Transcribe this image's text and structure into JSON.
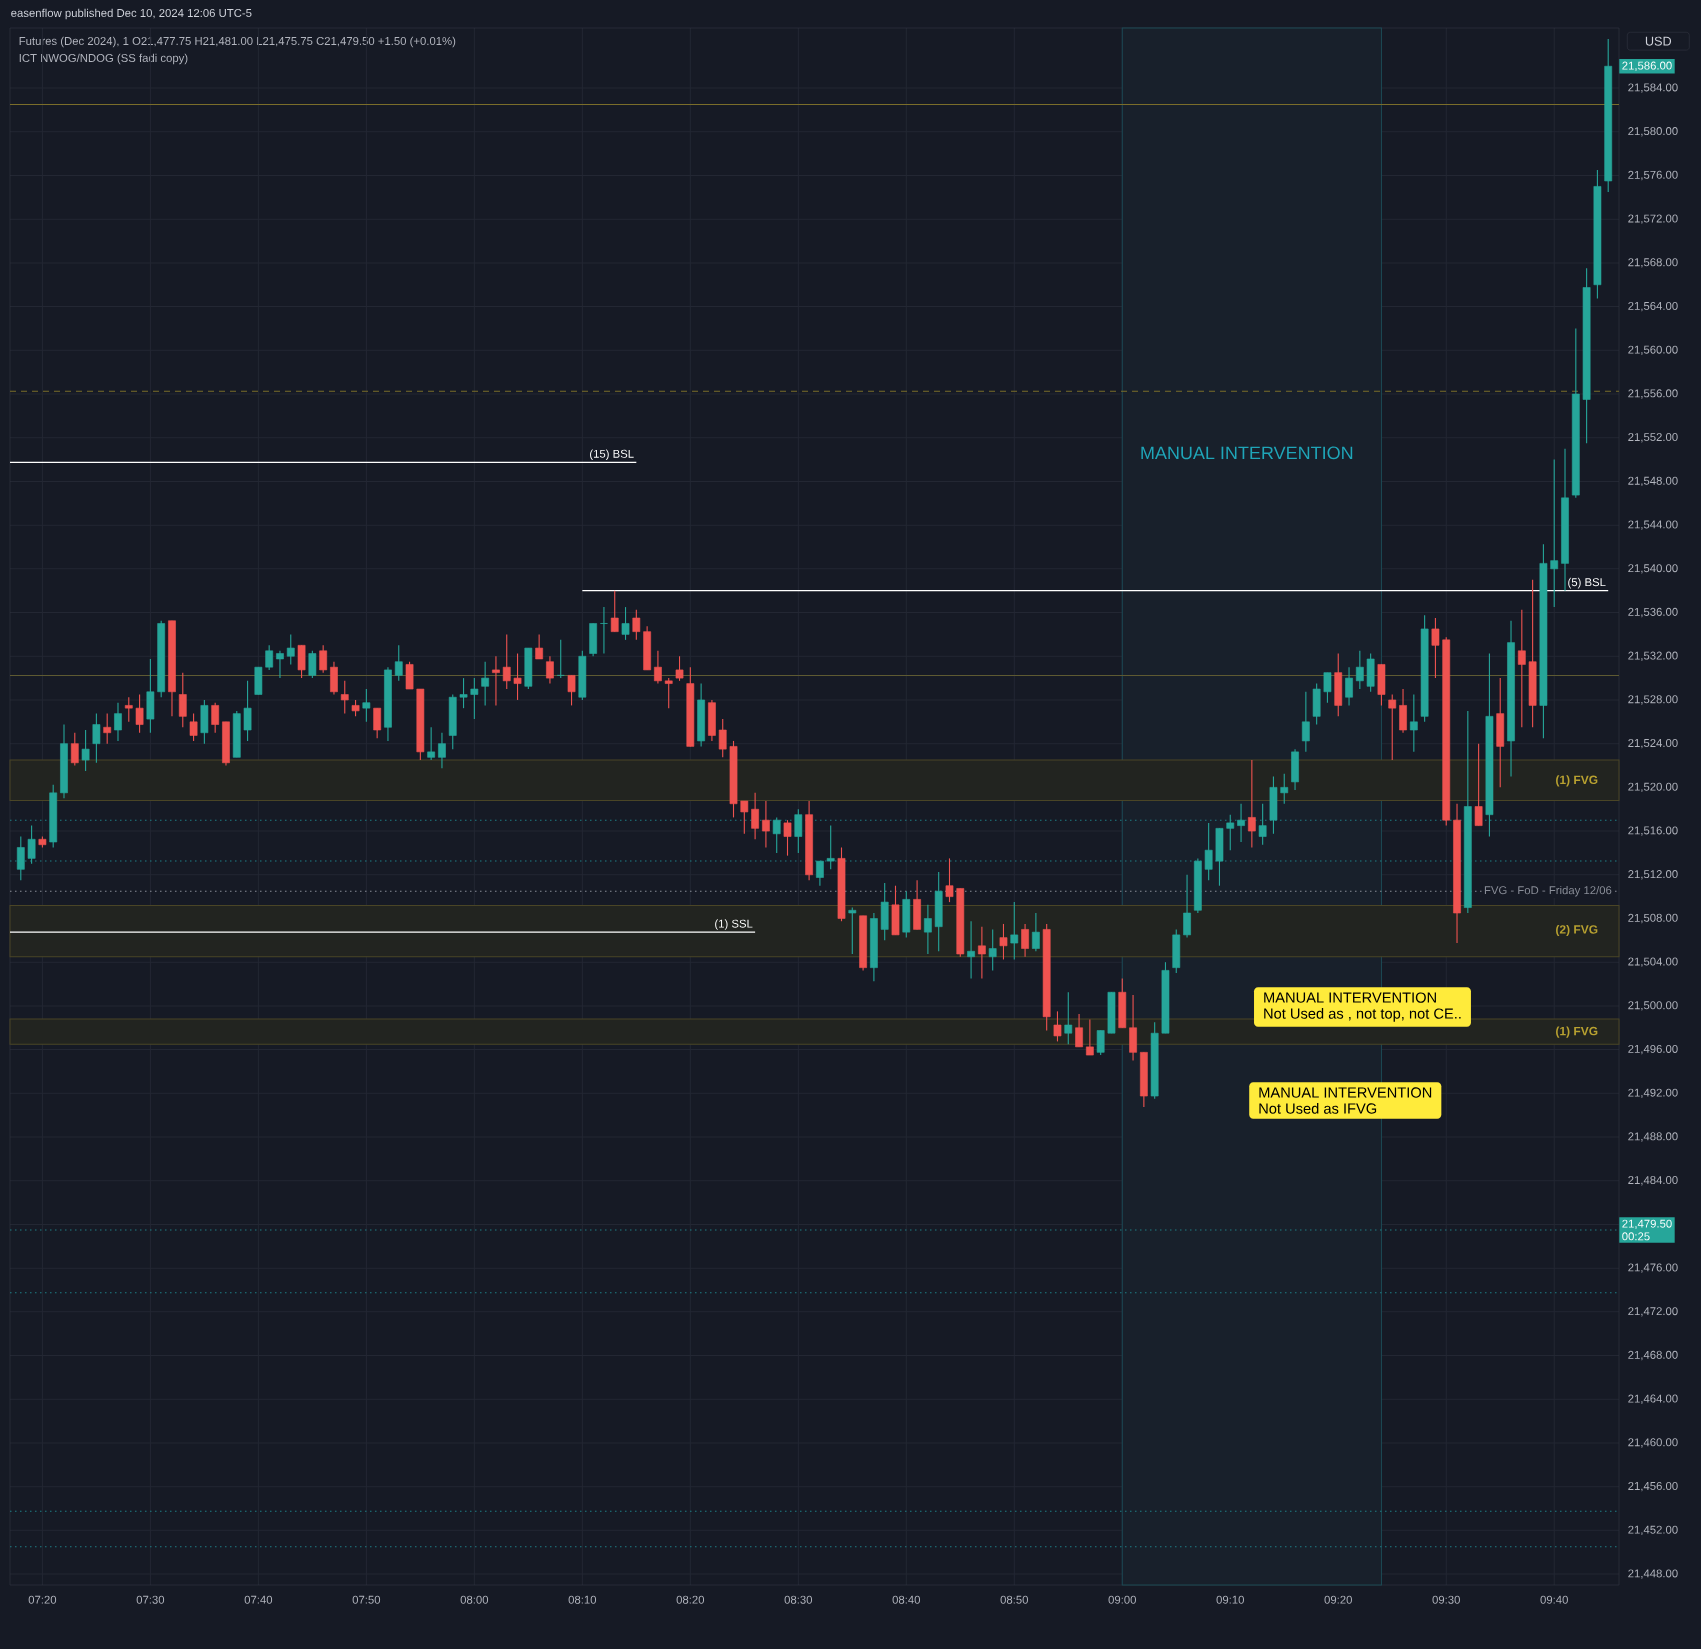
{
  "chart_data": {
    "type": "candlestick",
    "title": "easenflow published Dec 10, 2024 12:06 UTC-5",
    "subtitle": "Futures (Dec 2024), 1  O21,477.75  H21,481.00  L21,475.75  C21,479.50  +1.50 (+0.01%)",
    "xlim": [
      "2024-12-10T07:17",
      "2024-12-10T09:46"
    ],
    "ylim": [
      21447,
      21589.5
    ],
    "xticks": [
      {
        "value": "2024-12-10T07:20",
        "label": "07:20"
      },
      {
        "value": "2024-12-10T07:30",
        "label": "07:30"
      },
      {
        "value": "2024-12-10T07:40",
        "label": "07:40"
      },
      {
        "value": "2024-12-10T07:50",
        "label": "07:50"
      },
      {
        "value": "2024-12-10T08:00",
        "label": "08:00"
      },
      {
        "value": "2024-12-10T08:10",
        "label": "08:10"
      },
      {
        "value": "2024-12-10T08:20",
        "label": "08:20"
      },
      {
        "value": "2024-12-10T08:30",
        "label": "08:30"
      },
      {
        "value": "2024-12-10T08:40",
        "label": "08:40"
      },
      {
        "value": "2024-12-10T08:50",
        "label": "08:50"
      },
      {
        "value": "2024-12-10T09:00",
        "label": "09:00"
      },
      {
        "value": "2024-12-10T09:10",
        "label": "09:10"
      },
      {
        "value": "2024-12-10T09:20",
        "label": "09:20"
      },
      {
        "value": "2024-12-10T09:30",
        "label": "09:30"
      },
      {
        "value": "2024-12-10T09:40",
        "label": "09:40"
      }
    ],
    "yticks": [
      {
        "value": 21448,
        "label": "21,448.00"
      },
      {
        "value": 21452,
        "label": "21,452.00"
      },
      {
        "value": 21456,
        "label": "21,456.00"
      },
      {
        "value": 21460,
        "label": "21,460.00"
      },
      {
        "value": 21464,
        "label": "21,464.00"
      },
      {
        "value": 21468,
        "label": "21,468.00"
      },
      {
        "value": 21472,
        "label": "21,472.00"
      },
      {
        "value": 21476,
        "label": "21,476.00"
      },
      {
        "value": 21480,
        "label": null
      },
      {
        "value": 21484,
        "label": "21,484.00"
      },
      {
        "value": 21488,
        "label": "21,488.00"
      },
      {
        "value": 21492,
        "label": "21,492.00"
      },
      {
        "value": 21496,
        "label": "21,496.00"
      },
      {
        "value": 21500,
        "label": "21,500.00"
      },
      {
        "value": 21504,
        "label": "21,504.00"
      },
      {
        "value": 21508,
        "label": "21,508.00"
      },
      {
        "value": 21512,
        "label": "21,512.00"
      },
      {
        "value": 21516,
        "label": "21,516.00"
      },
      {
        "value": 21520,
        "label": "21,520.00"
      },
      {
        "value": 21524,
        "label": "21,524.00"
      },
      {
        "value": 21528,
        "label": "21,528.00"
      },
      {
        "value": 21532,
        "label": "21,532.00"
      },
      {
        "value": 21536,
        "label": "21,536.00"
      },
      {
        "value": 21540,
        "label": "21,540.00"
      },
      {
        "value": 21544,
        "label": "21,544.00"
      },
      {
        "value": 21548,
        "label": "21,548.00"
      },
      {
        "value": 21552,
        "label": "21,552.00"
      },
      {
        "value": 21556,
        "label": "21,556.00"
      },
      {
        "value": 21560,
        "label": "21,560.00"
      },
      {
        "value": 21564,
        "label": "21,564.00"
      },
      {
        "value": 21568,
        "label": "21,568.00"
      },
      {
        "value": 21572,
        "label": "21,572.00"
      },
      {
        "value": 21576,
        "label": "21,576.00"
      },
      {
        "value": 21580,
        "label": "21,580.00"
      },
      {
        "value": 21584,
        "label": "21,584.00"
      }
    ],
    "grid": true,
    "series": [
      {
        "type": "line",
        "name": "(15) BSL",
        "color": "#ffffff",
        "x": [
          "2024-12-10T07:17",
          "2024-12-10T08:15"
        ],
        "values": [
          21549.75,
          21549.75
        ]
      },
      {
        "type": "line",
        "name": "(5) BSL",
        "color": "#ffffff",
        "x": [
          "2024-12-10T08:10",
          "2024-12-10T09:45"
        ],
        "values": [
          21538,
          21538
        ]
      },
      {
        "type": "line",
        "name": "(1) SSL",
        "color": "#ffffff",
        "x": [
          "2024-12-10T07:17",
          "2024-12-10T08:26"
        ],
        "values": [
          21506.75,
          21506.75
        ]
      },
      {
        "color": "#26a69a",
        "x": [
          "2024-12-10T07:18",
          "2024-12-10T07:19",
          "2024-12-10T07:21",
          "2024-12-10T07:22",
          "2024-12-10T07:24",
          "2024-12-10T07:25",
          "2024-12-10T07:27",
          "2024-12-10T07:30",
          "2024-12-10T07:31",
          "2024-12-10T07:35",
          "2024-12-10T07:38",
          "2024-12-10T07:39",
          "2024-12-10T07:40",
          "2024-12-10T07:41",
          "2024-12-10T07:42",
          "2024-12-10T07:43",
          "2024-12-10T07:45",
          "2024-12-10T07:50",
          "2024-12-10T07:52",
          "2024-12-10T07:53",
          "2024-12-10T07:56",
          "2024-12-10T07:57",
          "2024-12-10T07:58",
          "2024-12-10T07:59",
          "2024-12-10T08:00",
          "2024-12-10T08:01",
          "2024-12-10T08:05",
          "2024-12-10T08:08",
          "2024-12-10T08:10",
          "2024-12-10T08:11",
          "2024-12-10T08:12",
          "2024-12-10T08:14",
          "2024-12-10T08:21",
          "2024-12-10T08:28",
          "2024-12-10T08:30",
          "2024-12-10T08:32",
          "2024-12-10T08:33",
          "2024-12-10T08:35",
          "2024-12-10T08:37",
          "2024-12-10T08:38",
          "2024-12-10T08:40",
          "2024-12-10T08:42",
          "2024-12-10T08:43",
          "2024-12-10T08:46",
          "2024-12-10T08:48",
          "2024-12-10T08:50",
          "2024-12-10T08:52",
          "2024-12-10T08:55",
          "2024-12-10T08:58",
          "2024-12-10T08:59",
          "2024-12-10T09:03",
          "2024-12-10T09:04",
          "2024-12-10T09:05",
          "2024-12-10T09:06",
          "2024-12-10T09:07",
          "2024-12-10T09:08",
          "2024-12-10T09:09",
          "2024-12-10T09:10",
          "2024-12-10T09:11",
          "2024-12-10T09:13",
          "2024-12-10T09:14",
          "2024-12-10T09:15",
          "2024-12-10T09:16",
          "2024-12-10T09:17",
          "2024-12-10T09:18",
          "2024-12-10T09:19",
          "2024-12-10T09:21",
          "2024-12-10T09:22",
          "2024-12-10T09:23",
          "2024-12-10T09:27",
          "2024-12-10T09:28",
          "2024-12-10T09:32",
          "2024-12-10T09:34",
          "2024-12-10T09:36",
          "2024-12-10T09:39",
          "2024-12-10T09:40",
          "2024-12-10T09:41",
          "2024-12-10T09:42",
          "2024-12-10T09:43",
          "2024-12-10T09:44",
          "2024-12-10T09:45"
        ],
        "ohlc": [
          [
            21512.5,
            21515.5,
            21511.5,
            21514.5
          ],
          [
            21513.5,
            21516.5,
            21513,
            21515.25
          ],
          [
            21515,
            21520.25,
            21514.5,
            21519.5
          ],
          [
            21519.5,
            21525.75,
            21519,
            21524
          ],
          [
            21522.5,
            21525.25,
            21521.5,
            21523.5
          ],
          [
            21524,
            21526.75,
            21522.25,
            21525.75
          ],
          [
            21525.25,
            21527.75,
            21524.25,
            21526.75
          ],
          [
            21526.25,
            21531.75,
            21525,
            21528.75
          ],
          [
            21528.75,
            21535.25,
            21528.25,
            21535
          ],
          [
            21525,
            21528,
            21524,
            21527.5
          ],
          [
            21522.75,
            21527,
            21522.75,
            21526.75
          ],
          [
            21525.25,
            21529.75,
            21524.25,
            21527.25
          ],
          [
            21528.5,
            21531,
            21528.5,
            21531
          ],
          [
            21531,
            21533,
            21530.75,
            21532.5
          ],
          [
            21531.75,
            21532.5,
            21530,
            21532.25
          ],
          [
            21532,
            21534,
            21531.25,
            21532.75
          ],
          [
            21530.25,
            21532.5,
            21530,
            21532.25
          ],
          [
            21527.25,
            21529,
            21526,
            21527.75
          ],
          [
            21525.5,
            21531,
            21524.25,
            21530.75
          ],
          [
            21530.25,
            21533,
            21529.75,
            21531.5
          ],
          [
            21522.75,
            21525.5,
            21522.5,
            21523.25
          ],
          [
            21522.75,
            21525,
            21521.75,
            21524
          ],
          [
            21524.75,
            21528.5,
            21523.5,
            21528.25
          ],
          [
            21528.25,
            21530,
            21527.25,
            21528.5
          ],
          [
            21528.5,
            21530,
            21526.25,
            21529
          ],
          [
            21529.25,
            21531.5,
            21527.5,
            21530
          ],
          [
            21529.25,
            21532.75,
            21529,
            21532.75
          ],
          [
            21530.25,
            21533.5,
            21530,
            21530.25
          ],
          [
            21528.25,
            21532.5,
            21528,
            21532
          ],
          [
            21532.25,
            21535,
            21532,
            21535
          ],
          [
            21535,
            21536.5,
            21532.25,
            21535
          ],
          [
            21534,
            21536.5,
            21533.5,
            21535
          ],
          [
            21524.25,
            21529.5,
            21523.75,
            21528
          ],
          [
            21515.75,
            21517.25,
            21514,
            21517
          ],
          [
            21515.5,
            21518,
            21514,
            21517.5
          ],
          [
            21511.75,
            21513.25,
            21511,
            21513.25
          ],
          [
            21513.25,
            21516.5,
            21512.5,
            21513.5
          ],
          [
            21508.5,
            21509,
            21504.75,
            21508.75
          ],
          [
            21503.5,
            21508.5,
            21502.25,
            21508
          ],
          [
            21507,
            21511.25,
            21506,
            21509.5
          ],
          [
            21506.75,
            21510.5,
            21506.25,
            21509.75
          ],
          [
            21506.75,
            21509.25,
            21504.75,
            21508
          ],
          [
            21507.25,
            21512.25,
            21505,
            21510.5
          ],
          [
            21504.5,
            21507.75,
            21502.5,
            21505
          ],
          [
            21504.5,
            21507,
            21503.25,
            21505.25
          ],
          [
            21505.75,
            21509.5,
            21504.25,
            21506.5
          ],
          [
            21505.25,
            21508.5,
            21505,
            21506.75
          ],
          [
            21497.5,
            21501.25,
            21496.5,
            21498.25
          ],
          [
            21495.75,
            21497.75,
            21495.5,
            21497.75
          ],
          [
            21497.5,
            21501.25,
            21497.5,
            21501.25
          ],
          [
            21491.75,
            21498.5,
            21491.5,
            21497.5
          ],
          [
            21497.5,
            21504,
            21497.5,
            21503.25
          ],
          [
            21503.5,
            21507,
            21503,
            21506.5
          ],
          [
            21506.5,
            21512,
            21506.25,
            21508.5
          ],
          [
            21508.75,
            21513.5,
            21508.5,
            21513.25
          ],
          [
            21512.5,
            21516.75,
            21511.5,
            21514.25
          ],
          [
            21513.25,
            21516.25,
            21511,
            21516.25
          ],
          [
            21516.25,
            21517.5,
            21514.25,
            21516.75
          ],
          [
            21516.5,
            21518.5,
            21515,
            21517
          ],
          [
            21515.5,
            21518.5,
            21514.75,
            21516.5
          ],
          [
            21517,
            21521,
            21515.75,
            21520
          ],
          [
            21519.5,
            21521.25,
            21518.5,
            21520
          ],
          [
            21520.5,
            21523.5,
            21519.75,
            21523.25
          ],
          [
            21524.25,
            21528.75,
            21523.25,
            21526
          ],
          [
            21526.5,
            21529.5,
            21525.75,
            21529
          ],
          [
            21528.75,
            21530.5,
            21527.75,
            21530.5
          ],
          [
            21528.25,
            21531,
            21527.5,
            21530
          ],
          [
            21529.75,
            21532.5,
            21529,
            21531
          ],
          [
            21529.25,
            21532.25,
            21528.75,
            21531.75
          ],
          [
            21525.25,
            21528.5,
            21523.25,
            21526
          ],
          [
            21526.5,
            21535.75,
            21526,
            21534.5
          ],
          [
            21509,
            21527,
            21508.5,
            21518.25
          ],
          [
            21517.5,
            21532.25,
            21515.5,
            21526.5
          ],
          [
            21524.25,
            21535.25,
            21521,
            21533.25
          ],
          [
            21527.5,
            21542.25,
            21524.5,
            21540.5
          ],
          [
            21540,
            21550,
            21536.5,
            21540.75
          ],
          [
            21540.5,
            21551,
            21538,
            21546.5
          ],
          [
            21546.75,
            21562,
            21546.5,
            21556
          ],
          [
            21555.5,
            21567.5,
            21551.5,
            21565.75
          ],
          [
            21566,
            21576.5,
            21564.75,
            21575
          ],
          [
            21575.5,
            21588.5,
            21574.5,
            21586
          ]
        ]
      },
      {
        "color": "#ef5350",
        "x": [
          "2024-12-10T07:20",
          "2024-12-10T07:23",
          "2024-12-10T07:26",
          "2024-12-10T07:28",
          "2024-12-10T07:29",
          "2024-12-10T07:32",
          "2024-12-10T07:33",
          "2024-12-10T07:34",
          "2024-12-10T07:36",
          "2024-12-10T07:37",
          "2024-12-10T07:44",
          "2024-12-10T07:46",
          "2024-12-10T07:47",
          "2024-12-10T07:48",
          "2024-12-10T07:49",
          "2024-12-10T07:51",
          "2024-12-10T07:54",
          "2024-12-10T07:55",
          "2024-12-10T08:02",
          "2024-12-10T08:03",
          "2024-12-10T08:04",
          "2024-12-10T08:06",
          "2024-12-10T08:07",
          "2024-12-10T08:09",
          "2024-12-10T08:13",
          "2024-12-10T08:15",
          "2024-12-10T08:16",
          "2024-12-10T08:17",
          "2024-12-10T08:18",
          "2024-12-10T08:19",
          "2024-12-10T08:20",
          "2024-12-10T08:22",
          "2024-12-10T08:23",
          "2024-12-10T08:24",
          "2024-12-10T08:25",
          "2024-12-10T08:26",
          "2024-12-10T08:27",
          "2024-12-10T08:29",
          "2024-12-10T08:31",
          "2024-12-10T08:34",
          "2024-12-10T08:36",
          "2024-12-10T08:39",
          "2024-12-10T08:41",
          "2024-12-10T08:44",
          "2024-12-10T08:45",
          "2024-12-10T08:47",
          "2024-12-10T08:49",
          "2024-12-10T08:51",
          "2024-12-10T08:53",
          "2024-12-10T08:54",
          "2024-12-10T08:56",
          "2024-12-10T08:57",
          "2024-12-10T09:00",
          "2024-12-10T09:01",
          "2024-12-10T09:02",
          "2024-12-10T09:12",
          "2024-12-10T09:20",
          "2024-12-10T09:24",
          "2024-12-10T09:25",
          "2024-12-10T09:26",
          "2024-12-10T09:29",
          "2024-12-10T09:30",
          "2024-12-10T09:31",
          "2024-12-10T09:33",
          "2024-12-10T09:35",
          "2024-12-10T09:37",
          "2024-12-10T09:38"
        ],
        "ohlc": [
          [
            21515.25,
            21515.5,
            21514.5,
            21514.75
          ],
          [
            21524,
            21525,
            21522,
            21522.25
          ],
          [
            21525.5,
            21526.75,
            21524,
            21525
          ],
          [
            21527.5,
            21528.25,
            21526,
            21527.25
          ],
          [
            21527.25,
            21528.5,
            21525,
            21525.75
          ],
          [
            21535.25,
            21535.25,
            21526.5,
            21528.75
          ],
          [
            21528.5,
            21530.5,
            21525.5,
            21526.5
          ],
          [
            21526,
            21526.75,
            21524.25,
            21524.75
          ],
          [
            21527.5,
            21527.75,
            21525,
            21525.75
          ],
          [
            21526,
            21526,
            21522,
            21522.25
          ],
          [
            21533,
            21533,
            21530,
            21530.75
          ],
          [
            21532.5,
            21533,
            21530.5,
            21530.75
          ],
          [
            21531,
            21531.5,
            21528.5,
            21528.75
          ],
          [
            21528.5,
            21529.75,
            21526.75,
            21528
          ],
          [
            21527.5,
            21528,
            21526.5,
            21527
          ],
          [
            21527.25,
            21527.25,
            21524.5,
            21525.25
          ],
          [
            21531.25,
            21531.5,
            21529,
            21529
          ],
          [
            21529,
            21529,
            21522.5,
            21523.25
          ],
          [
            21530.75,
            21532,
            21527.5,
            21530.5
          ],
          [
            21531,
            21534,
            21529,
            21529.75
          ],
          [
            21530,
            21532.25,
            21528,
            21529.5
          ],
          [
            21532.75,
            21534,
            21531.75,
            21531.75
          ],
          [
            21531.5,
            21532,
            21529.5,
            21530
          ],
          [
            21530.25,
            21530.25,
            21527.5,
            21528.75
          ],
          [
            21535.5,
            21538,
            21534.25,
            21534.25
          ],
          [
            21535.5,
            21536.25,
            21533.5,
            21534.25
          ],
          [
            21534.25,
            21534.75,
            21530.75,
            21530.75
          ],
          [
            21531,
            21532.5,
            21529.5,
            21529.75
          ],
          [
            21529.75,
            21530,
            21527.25,
            21529.5
          ],
          [
            21530.75,
            21532,
            21529.75,
            21530
          ],
          [
            21529.5,
            21531,
            21523.75,
            21523.75
          ],
          [
            21527.75,
            21528,
            21524.25,
            21524.75
          ],
          [
            21525.25,
            21526.25,
            21522.75,
            21523.5
          ],
          [
            21523.75,
            21524.25,
            21517.25,
            21518.5
          ],
          [
            21518.75,
            21518.75,
            21515.75,
            21517.75
          ],
          [
            21518,
            21519.5,
            21515.25,
            21516.25
          ],
          [
            21517,
            21518.75,
            21514.5,
            21516
          ],
          [
            21516.75,
            21517,
            21513.75,
            21515.5
          ],
          [
            21517.5,
            21518.75,
            21511.5,
            21512
          ],
          [
            21513.5,
            21514.5,
            21507.75,
            21508
          ],
          [
            21508.25,
            21508.25,
            21503.25,
            21503.5
          ],
          [
            21509.25,
            21511,
            21506.5,
            21506.5
          ],
          [
            21509.75,
            21511.5,
            21507,
            21507
          ],
          [
            21511,
            21513.5,
            21509.5,
            21510
          ],
          [
            21510.75,
            21510.75,
            21504.5,
            21504.75
          ],
          [
            21505.5,
            21507.25,
            21502.5,
            21504.75
          ],
          [
            21506.25,
            21507.5,
            21504.25,
            21505.5
          ],
          [
            21507,
            21507.5,
            21504.5,
            21505.25
          ],
          [
            21507,
            21507.5,
            21497.75,
            21499
          ],
          [
            21498.25,
            21499.5,
            21496.75,
            21497.25
          ],
          [
            21498,
            21499.25,
            21496.25,
            21496.25
          ],
          [
            21496.25,
            21498.75,
            21495.5,
            21495.5
          ],
          [
            21501.25,
            21502.5,
            21498,
            21498
          ],
          [
            21498,
            21501,
            21495,
            21495.75
          ],
          [
            21495.75,
            21495.75,
            21490.75,
            21491.75
          ],
          [
            21517.25,
            21522.5,
            21514.5,
            21516
          ],
          [
            21530.5,
            21532.25,
            21526.5,
            21527.5
          ],
          [
            21531.25,
            21531.25,
            21527.5,
            21528.5
          ],
          [
            21528,
            21528.5,
            21522.5,
            21527.25
          ],
          [
            21527.5,
            21529,
            21525,
            21525.25
          ],
          [
            21534.5,
            21535.5,
            21530,
            21533
          ],
          [
            21533.5,
            21533.75,
            21516.5,
            21517
          ],
          [
            21517,
            21518.5,
            21505.75,
            21508.5
          ],
          [
            21518.25,
            21524,
            21516.5,
            21516.5
          ],
          [
            21526.75,
            21530,
            21520,
            21523.75
          ],
          [
            21532.5,
            21536.25,
            21525.5,
            21531.25
          ],
          [
            21531.5,
            21539,
            21525.5,
            21527.5
          ]
        ]
      }
    ],
    "ref_lines": [
      {
        "axis": "y",
        "value": 21582.5,
        "color": "#7a6d2a",
        "line_style": "solid"
      },
      {
        "axis": "y",
        "value": 21556.25,
        "color": "#7a6d2a",
        "line_style": "dashed"
      },
      {
        "axis": "y",
        "value": 21530.25,
        "color": "#5e5a32",
        "line_style": "solid"
      },
      {
        "axis": "y",
        "value": 21517,
        "color": "#1f7f86",
        "line_style": "dotted"
      },
      {
        "axis": "y",
        "value": 21513.25,
        "color": "#1f7f86",
        "line_style": "dotted"
      },
      {
        "axis": "y",
        "value": 21510.5,
        "color": "#8a8e98",
        "line_style": "dotted",
        "label": "FVG - FoD - Friday 12/06"
      },
      {
        "axis": "y",
        "value": 21479.5,
        "color": "#1f7f86",
        "line_style": "dotted"
      },
      {
        "axis": "y",
        "value": 21473.75,
        "color": "#1f7f86",
        "line_style": "dotted"
      },
      {
        "axis": "y",
        "value": 21453.75,
        "color": "#1f7f86",
        "line_style": "dotted"
      },
      {
        "axis": "y",
        "value": 21450.5,
        "color": "#1f7f86",
        "line_style": "dotted"
      }
    ],
    "bands": [
      {
        "axis": "y",
        "from": 21518.75,
        "to": 21522.5,
        "label": "(1) FVG",
        "color": "#222420"
      },
      {
        "axis": "y",
        "from": 21504.5,
        "to": 21509.25,
        "label": "(2) FVG",
        "color": "#222420"
      },
      {
        "axis": "y",
        "from": 21496.5,
        "to": 21498.75,
        "label": "(1) FVG",
        "color": "#222420"
      },
      {
        "axis": "x",
        "from": "2024-12-10T09:00",
        "to": "2024-12-10T09:24",
        "label": "MANUAL INTERVENTION",
        "color": "#18202b"
      }
    ],
    "annotations": [
      "ICT NWOG/NDOG (SS fadi copy)",
      "USD",
      "MANUAL INTERVENTION",
      "Not Used as , not top, not CE..",
      "MANUAL INTERVENTION",
      "Not Used as IFVG",
      "21,586.00",
      "21,479.50",
      "00:25"
    ]
  }
}
